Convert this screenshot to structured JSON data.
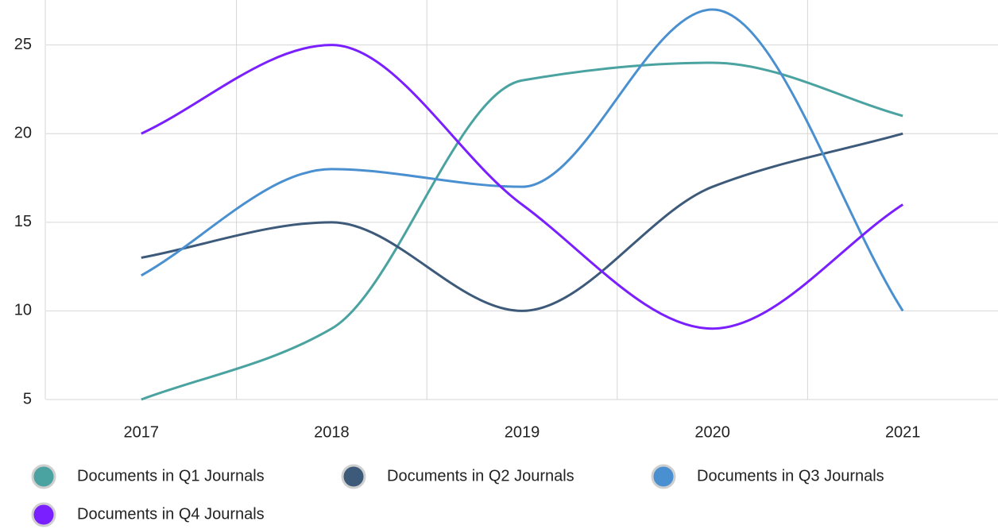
{
  "chart_data": {
    "type": "line",
    "categories": [
      "2017",
      "2018",
      "2019",
      "2020",
      "2021"
    ],
    "series": [
      {
        "name": "Documents in Q1 Journals",
        "color": "#4aa3a0",
        "values": [
          5,
          9,
          23,
          24,
          21
        ]
      },
      {
        "name": "Documents in Q2 Journals",
        "color": "#3d5a7a",
        "values": [
          13,
          15,
          10,
          17,
          20
        ]
      },
      {
        "name": "Documents in Q3 Journals",
        "color": "#4a90d0",
        "values": [
          12,
          18,
          17,
          27,
          10
        ]
      },
      {
        "name": "Documents in Q4 Journals",
        "color": "#7a1fff",
        "values": [
          20,
          25,
          16,
          9,
          16
        ]
      }
    ],
    "ylim": [
      5,
      27
    ],
    "yticks": [
      5,
      10,
      15,
      20,
      25
    ],
    "grid": true,
    "smooth": true,
    "legend": "bottom"
  }
}
